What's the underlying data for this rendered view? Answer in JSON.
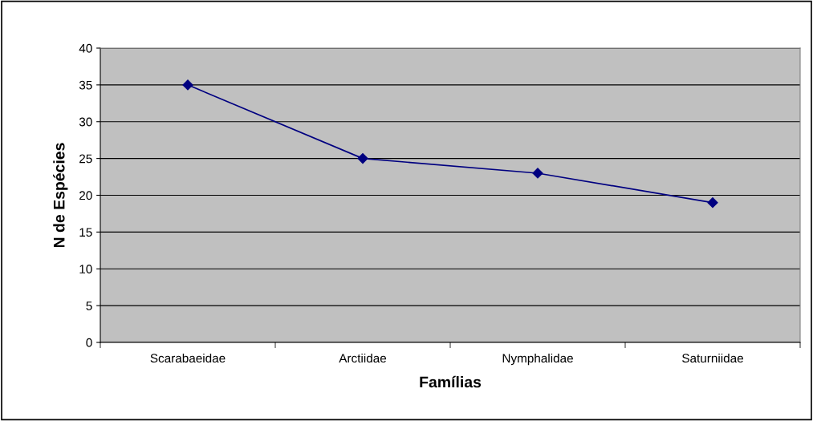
{
  "chart_data": {
    "type": "line",
    "xlabel": "Famílias",
    "ylabel": "N de Espécies",
    "categories": [
      "Scarabaeidae",
      "Arctiidae",
      "Nymphalidae",
      "Saturniidae"
    ],
    "series": [
      {
        "color": "#000080",
        "values": [
          35,
          25,
          23,
          19
        ]
      }
    ],
    "ylim": [
      0,
      40
    ],
    "yticks": [
      0,
      5,
      10,
      15,
      20,
      25,
      30,
      35,
      40
    ],
    "grid": "y",
    "marker": "diamond",
    "line_style": "solid",
    "legend": false
  }
}
